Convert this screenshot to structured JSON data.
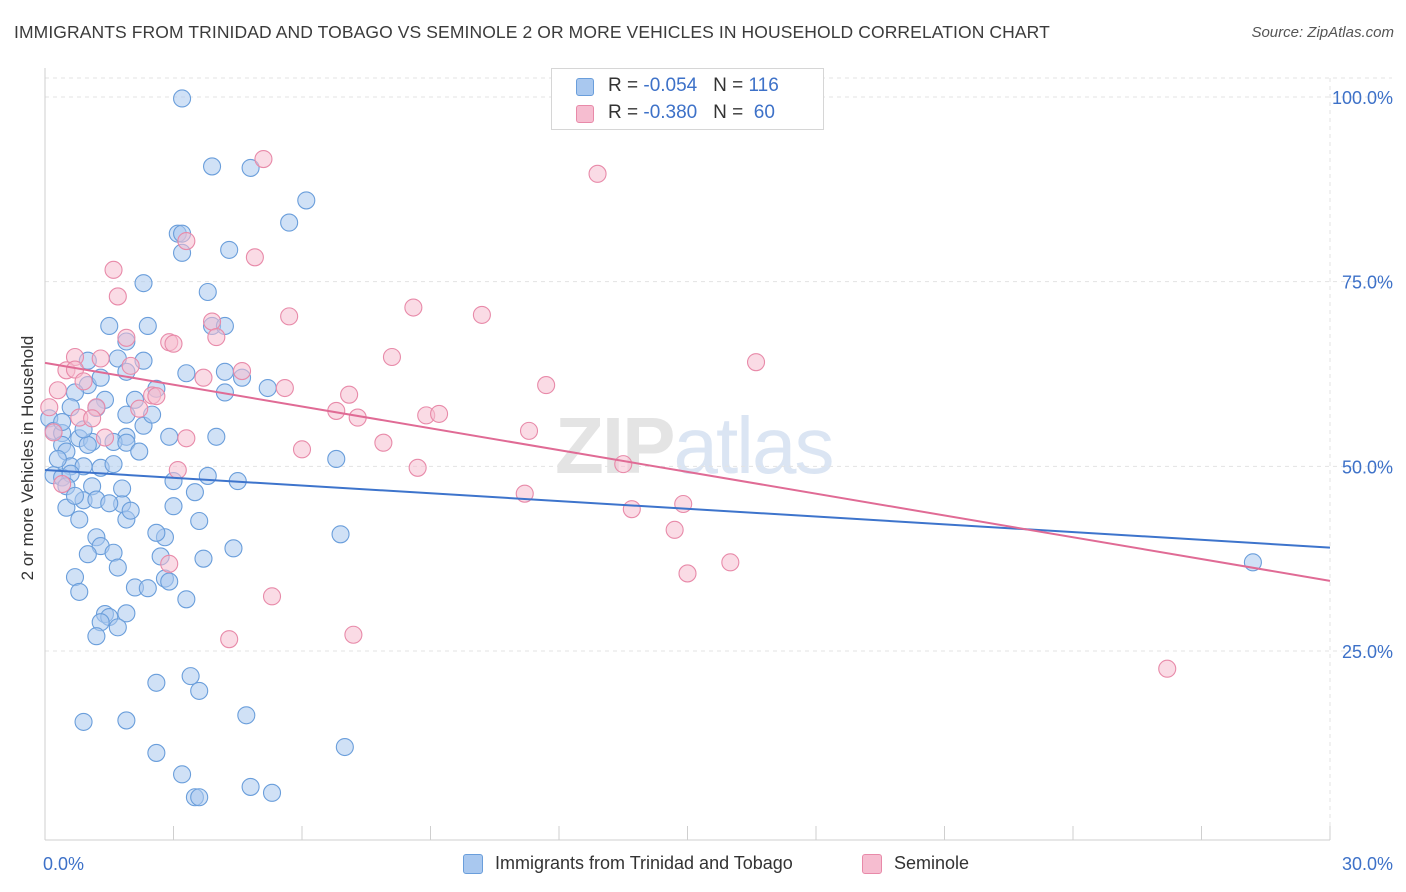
{
  "header": {
    "title": "IMMIGRANTS FROM TRINIDAD AND TOBAGO VS SEMINOLE 2 OR MORE VEHICLES IN HOUSEHOLD CORRELATION CHART",
    "source": "Source: ZipAtlas.com"
  },
  "watermark": {
    "zip": "ZIP",
    "atlas": "atlas"
  },
  "legend": {
    "series1": {
      "r_label": "R = ",
      "r_value": "-0.054",
      "n_label": "N = ",
      "n_value": "116",
      "name": "Immigrants from Trinidad and Tobago"
    },
    "series2": {
      "r_label": "R = ",
      "r_value": "-0.380",
      "n_label": "N = ",
      "n_value": " 60",
      "name": "Seminole"
    }
  },
  "colors": {
    "blue_fill": "#a9c8ef",
    "blue_stroke": "#6a9edb",
    "blue_line": "#3d74cc",
    "pink_fill": "#f6bdd0",
    "pink_stroke": "#e88aa9",
    "pink_line": "#e06b95",
    "grid": "#e3e3e3",
    "tick_label": "#3d71c8"
  },
  "chart_data": {
    "type": "scatter",
    "title": "IMMIGRANTS FROM TRINIDAD AND TOBAGO VS SEMINOLE 2 OR MORE VEHICLES IN HOUSEHOLD CORRELATION CHART",
    "xlabel": "",
    "ylabel": "2 or more Vehicles in Household",
    "xlim": [
      0,
      30
    ],
    "ylim": [
      0,
      102
    ],
    "x_tick_labels": [
      "0.0%",
      "30.0%"
    ],
    "y_ticks": [
      25,
      50,
      75,
      100
    ],
    "y_tick_labels": [
      "25.0%",
      "50.0%",
      "75.0%",
      "100.0%"
    ],
    "grid": true,
    "legend_position": "top-center",
    "series": [
      {
        "name": "Immigrants from Trinidad and Tobago",
        "color": "#a9c8ef",
        "trend": {
          "x": [
            0,
            30
          ],
          "y": [
            49.5,
            39.0
          ]
        },
        "points": [
          [
            3.2,
            99.8
          ],
          [
            3.9,
            90.6
          ],
          [
            4.8,
            90.4
          ],
          [
            6.1,
            86.0
          ],
          [
            5.7,
            83.0
          ],
          [
            3.1,
            81.5
          ],
          [
            3.2,
            81.5
          ],
          [
            4.3,
            79.3
          ],
          [
            3.2,
            78.9
          ],
          [
            2.3,
            74.8
          ],
          [
            3.8,
            73.6
          ],
          [
            1.5,
            69.0
          ],
          [
            2.4,
            69.0
          ],
          [
            3.9,
            69.0
          ],
          [
            4.2,
            69.0
          ],
          [
            1.9,
            66.9
          ],
          [
            1.7,
            64.6
          ],
          [
            1.0,
            64.3
          ],
          [
            2.3,
            64.3
          ],
          [
            1.9,
            62.8
          ],
          [
            3.3,
            62.6
          ],
          [
            4.2,
            62.8
          ],
          [
            4.6,
            62.0
          ],
          [
            1.0,
            61.0
          ],
          [
            0.7,
            60.0
          ],
          [
            2.6,
            60.5
          ],
          [
            5.2,
            60.6
          ],
          [
            1.4,
            59.0
          ],
          [
            1.9,
            57.0
          ],
          [
            1.2,
            57.9
          ],
          [
            0.1,
            56.5
          ],
          [
            0.2,
            54.8
          ],
          [
            0.4,
            54.5
          ],
          [
            2.3,
            55.5
          ],
          [
            0.8,
            53.8
          ],
          [
            1.1,
            53.3
          ],
          [
            1.9,
            54.0
          ],
          [
            2.9,
            54.0
          ],
          [
            0.4,
            52.9
          ],
          [
            0.5,
            52.0
          ],
          [
            1.0,
            52.9
          ],
          [
            1.6,
            53.3
          ],
          [
            1.9,
            53.2
          ],
          [
            0.6,
            50.0
          ],
          [
            0.9,
            50.0
          ],
          [
            1.3,
            49.8
          ],
          [
            1.6,
            50.3
          ],
          [
            6.8,
            51.0
          ],
          [
            0.2,
            48.8
          ],
          [
            0.4,
            48.5
          ],
          [
            0.6,
            49.0
          ],
          [
            3.8,
            48.7
          ],
          [
            4.5,
            48.0
          ],
          [
            0.5,
            47.3
          ],
          [
            1.1,
            47.3
          ],
          [
            3.5,
            46.5
          ],
          [
            0.9,
            45.4
          ],
          [
            1.2,
            45.5
          ],
          [
            1.8,
            44.9
          ],
          [
            0.5,
            44.4
          ],
          [
            3.0,
            44.6
          ],
          [
            0.8,
            42.8
          ],
          [
            1.9,
            42.8
          ],
          [
            3.6,
            42.6
          ],
          [
            1.2,
            40.4
          ],
          [
            2.8,
            40.4
          ],
          [
            1.3,
            39.2
          ],
          [
            6.9,
            40.8
          ],
          [
            4.4,
            38.9
          ],
          [
            1.0,
            38.1
          ],
          [
            1.6,
            38.3
          ],
          [
            2.7,
            37.8
          ],
          [
            1.7,
            36.3
          ],
          [
            0.7,
            35.0
          ],
          [
            2.8,
            34.8
          ],
          [
            2.9,
            34.4
          ],
          [
            2.1,
            33.6
          ],
          [
            2.4,
            33.5
          ],
          [
            3.3,
            32.0
          ],
          [
            1.4,
            30.0
          ],
          [
            1.5,
            29.6
          ],
          [
            1.9,
            30.1
          ],
          [
            1.3,
            28.9
          ],
          [
            1.7,
            28.2
          ],
          [
            3.4,
            21.6
          ],
          [
            2.6,
            20.7
          ],
          [
            3.6,
            19.6
          ],
          [
            0.9,
            15.4
          ],
          [
            1.9,
            15.6
          ],
          [
            4.7,
            16.3
          ],
          [
            7.0,
            12.0
          ],
          [
            2.6,
            11.2
          ],
          [
            3.2,
            8.3
          ],
          [
            4.8,
            6.6
          ],
          [
            3.5,
            5.2
          ],
          [
            3.6,
            5.2
          ],
          [
            5.3,
            5.8
          ],
          [
            28.2,
            37.0
          ],
          [
            4.2,
            60.0
          ],
          [
            0.3,
            51.0
          ],
          [
            2.1,
            59.0
          ],
          [
            1.5,
            45.0
          ],
          [
            0.9,
            55.0
          ],
          [
            2.5,
            57.0
          ],
          [
            3.0,
            48.0
          ],
          [
            0.6,
            58.0
          ],
          [
            1.3,
            62.0
          ],
          [
            4.0,
            54.0
          ],
          [
            2.0,
            44.0
          ],
          [
            0.8,
            33.0
          ],
          [
            1.2,
            27.0
          ],
          [
            2.2,
            52.0
          ],
          [
            3.7,
            37.5
          ],
          [
            0.4,
            56.0
          ],
          [
            1.8,
            47.0
          ],
          [
            2.6,
            41.0
          ],
          [
            0.7,
            46.0
          ]
        ]
      },
      {
        "name": "Seminole",
        "color": "#f6bdd0",
        "trend": {
          "x": [
            0,
            30
          ],
          "y": [
            64.0,
            34.5
          ]
        },
        "points": [
          [
            5.1,
            91.6
          ],
          [
            12.9,
            89.6
          ],
          [
            1.6,
            76.6
          ],
          [
            3.3,
            80.5
          ],
          [
            4.9,
            78.3
          ],
          [
            1.7,
            73.0
          ],
          [
            8.6,
            71.5
          ],
          [
            10.2,
            70.5
          ],
          [
            5.7,
            70.3
          ],
          [
            3.9,
            69.6
          ],
          [
            4.0,
            67.5
          ],
          [
            1.9,
            67.4
          ],
          [
            2.9,
            66.8
          ],
          [
            3.0,
            66.6
          ],
          [
            1.3,
            64.6
          ],
          [
            0.7,
            64.8
          ],
          [
            8.1,
            64.8
          ],
          [
            16.6,
            64.1
          ],
          [
            2.0,
            63.6
          ],
          [
            0.5,
            63.0
          ],
          [
            0.7,
            63.1
          ],
          [
            4.6,
            62.9
          ],
          [
            3.7,
            62.0
          ],
          [
            5.6,
            60.6
          ],
          [
            2.5,
            59.6
          ],
          [
            0.3,
            60.3
          ],
          [
            7.1,
            59.7
          ],
          [
            2.6,
            59.5
          ],
          [
            11.7,
            61.0
          ],
          [
            0.1,
            58.0
          ],
          [
            1.2,
            58.0
          ],
          [
            2.2,
            57.8
          ],
          [
            6.8,
            57.5
          ],
          [
            0.8,
            56.6
          ],
          [
            1.1,
            56.5
          ],
          [
            7.3,
            56.6
          ],
          [
            8.9,
            56.9
          ],
          [
            9.2,
            57.1
          ],
          [
            0.2,
            54.6
          ],
          [
            11.3,
            54.8
          ],
          [
            1.4,
            53.9
          ],
          [
            3.3,
            53.8
          ],
          [
            7.9,
            53.2
          ],
          [
            6.0,
            52.3
          ],
          [
            8.7,
            49.8
          ],
          [
            3.1,
            49.5
          ],
          [
            13.5,
            50.3
          ],
          [
            0.4,
            47.6
          ],
          [
            11.2,
            46.3
          ],
          [
            13.7,
            44.2
          ],
          [
            14.9,
            44.9
          ],
          [
            14.7,
            41.4
          ],
          [
            16.0,
            37.0
          ],
          [
            15.0,
            35.5
          ],
          [
            2.9,
            36.8
          ],
          [
            5.3,
            32.4
          ],
          [
            7.2,
            27.2
          ],
          [
            4.3,
            26.6
          ],
          [
            26.2,
            22.6
          ],
          [
            0.9,
            61.5
          ]
        ]
      }
    ]
  }
}
